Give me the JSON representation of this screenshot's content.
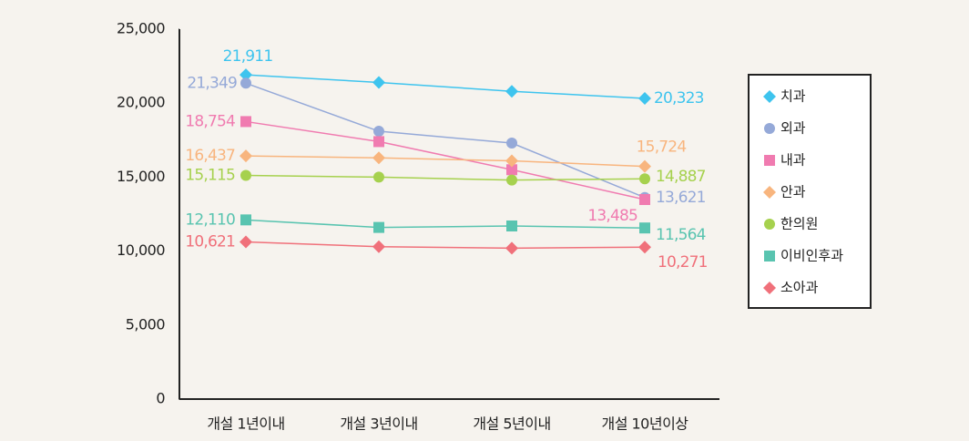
{
  "chart_data": {
    "type": "line",
    "categories": [
      "개설 1년이내",
      "개설 3년이내",
      "개설 5년이내",
      "개설 10년이상"
    ],
    "ylim": [
      0,
      25000
    ],
    "yticks": [
      0,
      {
        "value": 5000,
        "label": "5,000"
      },
      {
        "value": 10000,
        "label": "10,000"
      },
      {
        "value": 15000,
        "label": "15,000"
      },
      {
        "value": 20000,
        "label": "20,000"
      },
      {
        "value": 25000,
        "label": "25,000"
      }
    ],
    "grid": false,
    "legend": "right",
    "series": [
      {
        "name": "치과",
        "color": "#3ec4ee",
        "marker": "diamond",
        "values": [
          21911,
          21400,
          20800,
          20323
        ],
        "value_labels": [
          "21,911",
          null,
          null,
          "20,323"
        ]
      },
      {
        "name": "외과",
        "color": "#95a9d8",
        "marker": "circle",
        "values": [
          21349,
          18100,
          17300,
          13621
        ],
        "value_labels": [
          "21,349",
          null,
          null,
          "13,621"
        ]
      },
      {
        "name": "내과",
        "color": "#f07bb0",
        "marker": "square",
        "values": [
          18754,
          17400,
          15500,
          13485
        ],
        "value_labels": [
          "18,754",
          null,
          null,
          "13,485"
        ]
      },
      {
        "name": "안과",
        "color": "#f8b57e",
        "marker": "diamond",
        "values": [
          16437,
          16300,
          16100,
          15724
        ],
        "value_labels": [
          "16,437",
          null,
          null,
          "15,724"
        ]
      },
      {
        "name": "한의원",
        "color": "#a6d14e",
        "marker": "circle",
        "values": [
          15115,
          15000,
          14800,
          14887
        ],
        "value_labels": [
          "15,115",
          null,
          null,
          "14,887"
        ]
      },
      {
        "name": "이비인후과",
        "color": "#59c4b0",
        "marker": "square",
        "values": [
          12110,
          11600,
          11700,
          11564
        ],
        "value_labels": [
          "12,110",
          null,
          null,
          "11,564"
        ]
      },
      {
        "name": "소아과",
        "color": "#f0707a",
        "marker": "diamond",
        "values": [
          10621,
          10300,
          10200,
          10271
        ],
        "value_labels": [
          "10,621",
          null,
          null,
          "10,271"
        ]
      }
    ]
  }
}
